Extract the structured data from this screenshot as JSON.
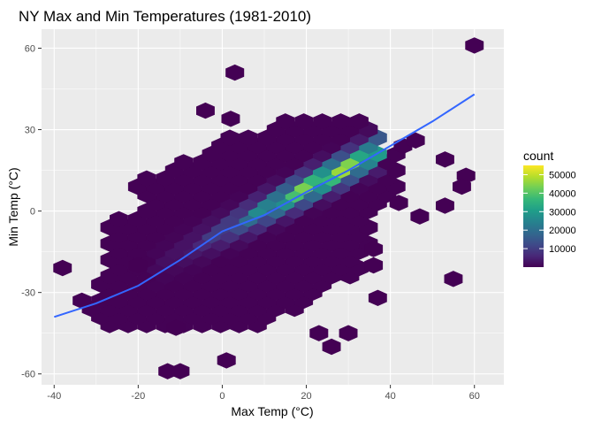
{
  "chart_data": {
    "type": "heatmap",
    "subtype": "hexbin",
    "title": "NY Max and Min Temperatures (1981-2010)",
    "xlabel": "Max Temp (°C)",
    "ylabel": "Min Temp (°C)",
    "xlim": [
      -43,
      67
    ],
    "ylim": [
      -64,
      67
    ],
    "x_ticks": [
      -40,
      -20,
      0,
      20,
      40,
      60
    ],
    "y_ticks": [
      -60,
      -30,
      0,
      30,
      60
    ],
    "x_tick_labels": [
      "-40",
      "-20",
      "0",
      "20",
      "40",
      "60"
    ],
    "y_tick_labels": [
      "-60",
      "-30",
      "0",
      "30",
      "60"
    ],
    "grid": true,
    "legend": {
      "title": "count",
      "position": "right",
      "range": [
        0,
        55000
      ],
      "breaks": [
        10000,
        20000,
        30000,
        40000,
        50000
      ],
      "break_labels": [
        "10000",
        "20000",
        "30000",
        "40000",
        "50000"
      ]
    },
    "colors": {
      "panel_background": "#ebebeb",
      "grid_major": "#ffffff",
      "smooth_line": "#3366ff",
      "viridis": [
        "#440154",
        "#482878",
        "#3e4a89",
        "#31688e",
        "#26828e",
        "#1f9e89",
        "#35b779",
        "#6ece58",
        "#b5de2b",
        "#fde725"
      ]
    },
    "hex_extent": {
      "x_range": [
        -30,
        45
      ],
      "row_bounds": [
        {
          "y": -42,
          "x0": -30,
          "x1": 10
        },
        {
          "y": -39,
          "x0": -32,
          "x1": 14
        },
        {
          "y": -36,
          "x0": -34,
          "x1": 20
        },
        {
          "y": -33,
          "x0": -34,
          "x1": 22
        },
        {
          "y": -30,
          "x0": -30,
          "x1": 25
        },
        {
          "y": -27,
          "x0": -30,
          "x1": 28
        },
        {
          "y": -24,
          "x0": -28,
          "x1": 32
        },
        {
          "y": -21,
          "x0": -28,
          "x1": 34
        },
        {
          "y": -18,
          "x0": -28,
          "x1": 34
        },
        {
          "y": -15,
          "x0": -28,
          "x1": 34
        },
        {
          "y": -12,
          "x0": -28,
          "x1": 36
        },
        {
          "y": -9,
          "x0": -28,
          "x1": 36
        },
        {
          "y": -6,
          "x0": -30,
          "x1": 36
        },
        {
          "y": -3,
          "x0": -26,
          "x1": 36
        },
        {
          "y": 0,
          "x0": -22,
          "x1": 38
        },
        {
          "y": 3,
          "x0": -20,
          "x1": 40
        },
        {
          "y": 6,
          "x0": -20,
          "x1": 42
        },
        {
          "y": 9,
          "x0": -22,
          "x1": 42
        },
        {
          "y": 12,
          "x0": -22,
          "x1": 42
        },
        {
          "y": 15,
          "x0": -14,
          "x1": 42
        },
        {
          "y": 18,
          "x0": -12,
          "x1": 42
        },
        {
          "y": 21,
          "x0": -4,
          "x1": 42
        },
        {
          "y": 24,
          "x0": -4,
          "x1": 38
        },
        {
          "y": 27,
          "x0": -2,
          "x1": 38
        },
        {
          "y": 30,
          "x0": 12,
          "x1": 38
        },
        {
          "y": 33,
          "x0": 14,
          "x1": 36
        }
      ]
    },
    "outliers": [
      {
        "x": 3,
        "y": 51
      },
      {
        "x": -4,
        "y": 37
      },
      {
        "x": 2,
        "y": 34
      },
      {
        "x": -20,
        "y": -20
      },
      {
        "x": -38,
        "y": -21
      },
      {
        "x": -11,
        "y": -43
      },
      {
        "x": 23,
        "y": -45
      },
      {
        "x": 30,
        "y": -45
      },
      {
        "x": 26,
        "y": -50
      },
      {
        "x": 1,
        "y": -55
      },
      {
        "x": -13,
        "y": -59
      },
      {
        "x": -10,
        "y": -59
      },
      {
        "x": 53,
        "y": 19
      },
      {
        "x": 58,
        "y": 13
      },
      {
        "x": 57,
        "y": 9
      },
      {
        "x": 42,
        "y": 3
      },
      {
        "x": 47,
        "y": -2
      },
      {
        "x": 53,
        "y": 2
      },
      {
        "x": 36,
        "y": -14
      },
      {
        "x": 36,
        "y": -20
      },
      {
        "x": 37,
        "y": -32
      },
      {
        "x": 55,
        "y": -25
      },
      {
        "x": 60,
        "y": 61
      },
      {
        "x": 43,
        "y": 24
      },
      {
        "x": 46,
        "y": 26
      }
    ],
    "smooth_line": {
      "x": [
        -40,
        -30,
        -20,
        -10,
        0,
        10,
        20,
        30,
        40,
        50,
        60
      ],
      "y": [
        -39,
        -34,
        -27.5,
        -18,
        -7.5,
        -1.5,
        7,
        15,
        24,
        33,
        43
      ]
    },
    "density_ridge": {
      "start": {
        "x": -10,
        "y": -15
      },
      "end": {
        "x": 35,
        "y": 21
      },
      "peak": {
        "x": 26,
        "y": 15,
        "count": 52000
      }
    }
  }
}
